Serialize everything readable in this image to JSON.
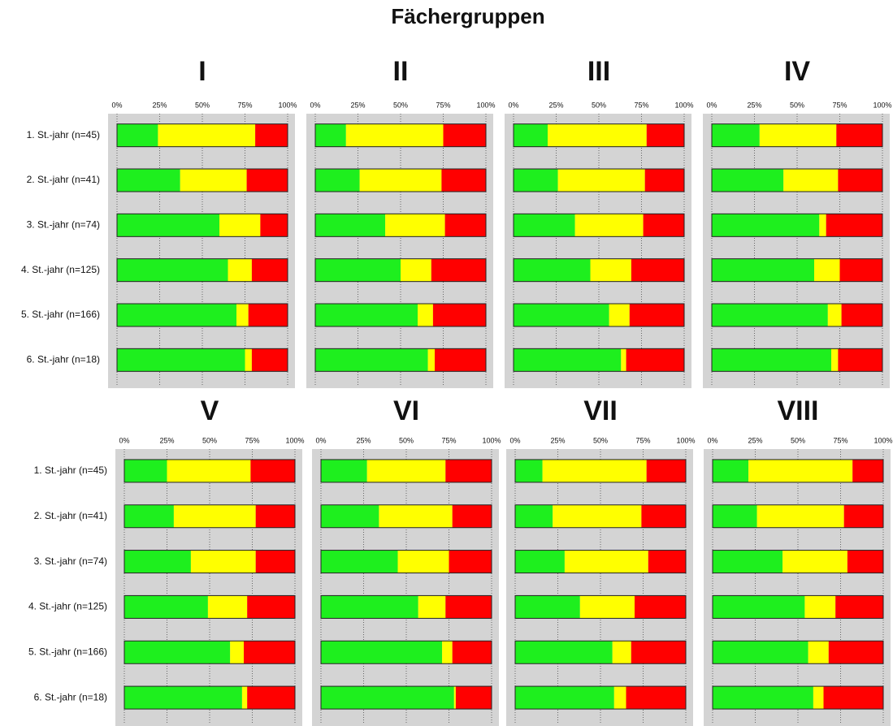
{
  "title": "Fächergruppen",
  "chart_data": [
    {
      "type": "bar",
      "orientation": "horizontal",
      "stacked": true,
      "title": "I",
      "categories": [
        "1. St.-jahr (n=45)",
        "2. St.-jahr (n=41)",
        "3. St.-jahr (n=74)",
        "4. St.-jahr (n=125)",
        "5. St.-jahr (n=166)",
        "6. St.-jahr (n=18)"
      ],
      "series": [
        {
          "color": "#1eef1e",
          "values": [
            24,
            37,
            60,
            65,
            70,
            75
          ]
        },
        {
          "color": "#ffff00",
          "values": [
            57,
            39,
            24,
            14,
            7,
            4
          ]
        },
        {
          "color": "#ff0000",
          "values": [
            19,
            24,
            16,
            21,
            23,
            21
          ]
        }
      ],
      "xlim": [
        0,
        100
      ],
      "xticks": [
        {
          "value": 0,
          "label": "0%"
        },
        {
          "value": 25,
          "label": "25%"
        },
        {
          "value": 50,
          "label": "50%"
        },
        {
          "value": 75,
          "label": "75%"
        },
        {
          "value": 100,
          "label": "100%"
        }
      ],
      "grid": true
    },
    {
      "type": "bar",
      "orientation": "horizontal",
      "stacked": true,
      "title": "II",
      "categories": [
        null,
        null,
        null,
        null,
        null,
        null
      ],
      "series": [
        {
          "color": "#1eef1e",
          "values": [
            18,
            26,
            41,
            50,
            60,
            66
          ]
        },
        {
          "color": "#ffff00",
          "values": [
            57,
            48,
            35,
            18,
            9,
            4
          ]
        },
        {
          "color": "#ff0000",
          "values": [
            25,
            26,
            24,
            32,
            31,
            30
          ]
        }
      ],
      "xlim": [
        0,
        100
      ],
      "xticks": [
        {
          "value": 0,
          "label": "0%"
        },
        {
          "value": 25,
          "label": "25%"
        },
        {
          "value": 50,
          "label": "50%"
        },
        {
          "value": 75,
          "label": "75%"
        },
        {
          "value": 100,
          "label": "100%"
        }
      ],
      "grid": true
    },
    {
      "type": "bar",
      "orientation": "horizontal",
      "stacked": true,
      "title": "III",
      "categories": [
        null,
        null,
        null,
        null,
        null,
        null
      ],
      "series": [
        {
          "color": "#1eef1e",
          "values": [
            20,
            26,
            36,
            45,
            56,
            63
          ]
        },
        {
          "color": "#ffff00",
          "values": [
            58,
            51,
            40,
            24,
            12,
            3
          ]
        },
        {
          "color": "#ff0000",
          "values": [
            22,
            23,
            24,
            31,
            32,
            34
          ]
        }
      ],
      "xlim": [
        0,
        100
      ],
      "xticks": [
        {
          "value": 0,
          "label": "0%"
        },
        {
          "value": 25,
          "label": "25%"
        },
        {
          "value": 50,
          "label": "50%"
        },
        {
          "value": 75,
          "label": "75%"
        },
        {
          "value": 100,
          "label": "100%"
        }
      ],
      "grid": true
    },
    {
      "type": "bar",
      "orientation": "horizontal",
      "stacked": true,
      "title": "IV",
      "categories": [
        null,
        null,
        null,
        null,
        null,
        null
      ],
      "series": [
        {
          "color": "#1eef1e",
          "values": [
            28,
            42,
            63,
            60,
            68,
            70
          ]
        },
        {
          "color": "#ffff00",
          "values": [
            45,
            32,
            4,
            15,
            8,
            4
          ]
        },
        {
          "color": "#ff0000",
          "values": [
            27,
            26,
            33,
            25,
            24,
            26
          ]
        }
      ],
      "xlim": [
        0,
        100
      ],
      "xticks": [
        {
          "value": 0,
          "label": "0%"
        },
        {
          "value": 25,
          "label": "25%"
        },
        {
          "value": 50,
          "label": "50%"
        },
        {
          "value": 75,
          "label": "75%"
        },
        {
          "value": 100,
          "label": "100%"
        }
      ],
      "grid": true
    },
    {
      "type": "bar",
      "orientation": "horizontal",
      "stacked": true,
      "title": "V",
      "categories": [
        "1. St.-jahr (n=45)",
        "2. St.-jahr (n=41)",
        "3. St.-jahr (n=74)",
        "4. St.-jahr (n=125)",
        "5. St.-jahr (n=166)",
        "6. St.-jahr (n=18)"
      ],
      "series": [
        {
          "color": "#1eef1e",
          "values": [
            25,
            29,
            39,
            49,
            62,
            69
          ]
        },
        {
          "color": "#ffff00",
          "values": [
            49,
            48,
            38,
            23,
            8,
            3
          ]
        },
        {
          "color": "#ff0000",
          "values": [
            26,
            23,
            23,
            28,
            30,
            28
          ]
        }
      ],
      "xlim": [
        0,
        100
      ],
      "xticks": [
        {
          "value": 0,
          "label": "0%"
        },
        {
          "value": 25,
          "label": "25%"
        },
        {
          "value": 50,
          "label": "50%"
        },
        {
          "value": 75,
          "label": "75%"
        },
        {
          "value": 100,
          "label": "100%"
        }
      ],
      "grid": true
    },
    {
      "type": "bar",
      "orientation": "horizontal",
      "stacked": true,
      "title": "VI",
      "categories": [
        null,
        null,
        null,
        null,
        null,
        null
      ],
      "series": [
        {
          "color": "#1eef1e",
          "values": [
            27,
            34,
            45,
            57,
            71,
            78
          ]
        },
        {
          "color": "#ffff00",
          "values": [
            46,
            43,
            30,
            16,
            6,
            1
          ]
        },
        {
          "color": "#ff0000",
          "values": [
            27,
            23,
            25,
            27,
            23,
            21
          ]
        }
      ],
      "xlim": [
        0,
        100
      ],
      "xticks": [
        {
          "value": 0,
          "label": "0%"
        },
        {
          "value": 25,
          "label": "25%"
        },
        {
          "value": 50,
          "label": "50%"
        },
        {
          "value": 75,
          "label": "75%"
        },
        {
          "value": 100,
          "label": "100%"
        }
      ],
      "grid": true
    },
    {
      "type": "bar",
      "orientation": "horizontal",
      "stacked": true,
      "title": "VII",
      "categories": [
        null,
        null,
        null,
        null,
        null,
        null
      ],
      "series": [
        {
          "color": "#1eef1e",
          "values": [
            16,
            22,
            29,
            38,
            57,
            58
          ]
        },
        {
          "color": "#ffff00",
          "values": [
            61,
            52,
            49,
            32,
            11,
            7
          ]
        },
        {
          "color": "#ff0000",
          "values": [
            23,
            26,
            22,
            30,
            32,
            35
          ]
        }
      ],
      "xlim": [
        0,
        100
      ],
      "xticks": [
        {
          "value": 0,
          "label": "0%"
        },
        {
          "value": 25,
          "label": "25%"
        },
        {
          "value": 50,
          "label": "50%"
        },
        {
          "value": 75,
          "label": "75%"
        },
        {
          "value": 100,
          "label": "100%"
        }
      ],
      "grid": true
    },
    {
      "type": "bar",
      "orientation": "horizontal",
      "stacked": true,
      "title": "VIII",
      "categories": [
        null,
        null,
        null,
        null,
        null,
        null
      ],
      "series": [
        {
          "color": "#1eef1e",
          "values": [
            21,
            26,
            41,
            54,
            56,
            59
          ]
        },
        {
          "color": "#ffff00",
          "values": [
            61,
            51,
            38,
            18,
            12,
            6
          ]
        },
        {
          "color": "#ff0000",
          "values": [
            18,
            23,
            21,
            28,
            32,
            35
          ]
        }
      ],
      "xlim": [
        0,
        100
      ],
      "xticks": [
        {
          "value": 0,
          "label": "0%"
        },
        {
          "value": 25,
          "label": "25%"
        },
        {
          "value": 50,
          "label": "50%"
        },
        {
          "value": 75,
          "label": "75%"
        },
        {
          "value": 100,
          "label": "100%"
        }
      ],
      "grid": true
    }
  ]
}
